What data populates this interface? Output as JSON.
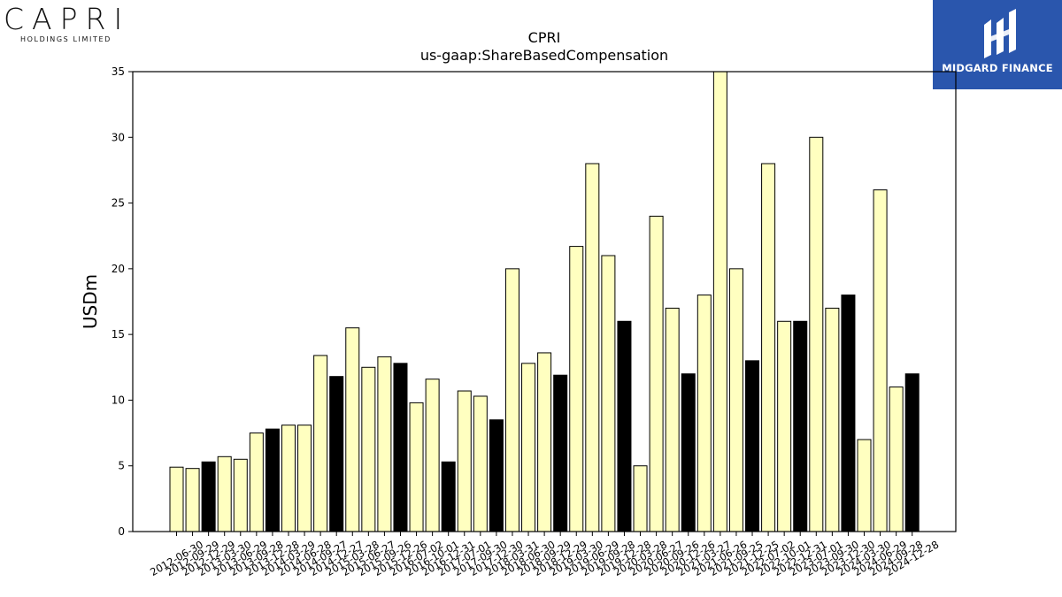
{
  "logos": {
    "capri_word": "CAPRI",
    "capri_sub": "HOLDINGS LIMITED",
    "midgard": "MIDGARD FINANCE"
  },
  "chart_data": {
    "type": "bar",
    "title": "CPRI",
    "subtitle": "us-gaap:ShareBasedCompensation",
    "xlabel": "",
    "ylabel": "USDm",
    "ylim": [
      0,
      35
    ],
    "yticks": [
      0,
      5,
      10,
      15,
      20,
      25,
      30,
      35
    ],
    "grid": false,
    "colors": {
      "q4": "#000000",
      "other": "#ffffc0",
      "edge": "#000000"
    },
    "categories": [
      "2012-06-30",
      "2012-09-29",
      "2012-12-29",
      "2013-03-30",
      "2013-06-29",
      "2013-09-28",
      "2013-12-28",
      "2014-03-29",
      "2014-06-28",
      "2014-09-27",
      "2014-12-27",
      "2015-03-28",
      "2015-06-27",
      "2015-09-26",
      "2015-12-26",
      "2016-07-02",
      "2016-10-01",
      "2016-12-31",
      "2017-07-01",
      "2017-09-30",
      "2017-12-30",
      "2018-03-31",
      "2018-06-30",
      "2018-09-29",
      "2018-12-29",
      "2019-03-30",
      "2019-06-29",
      "2019-09-28",
      "2019-12-28",
      "2020-03-28",
      "2020-06-27",
      "2020-09-26",
      "2020-12-26",
      "2021-03-27",
      "2021-06-26",
      "2021-09-25",
      "2021-12-25",
      "2022-07-02",
      "2022-10-01",
      "2022-12-31",
      "2023-07-01",
      "2023-09-30",
      "2023-12-30",
      "2024-03-30",
      "2024-06-29",
      "2024-09-28",
      "2024-12-28"
    ],
    "values": [
      4.9,
      4.8,
      5.3,
      5.7,
      5.5,
      7.5,
      7.8,
      8.1,
      8.1,
      13.4,
      11.8,
      15.5,
      12.5,
      13.3,
      12.8,
      9.8,
      11.6,
      5.3,
      10.7,
      10.3,
      8.5,
      20.0,
      12.8,
      13.6,
      11.9,
      21.7,
      28.0,
      21.0,
      16.0,
      5.0,
      24.0,
      17.0,
      12.0,
      18.0,
      35.0,
      20.0,
      13.0,
      28.0,
      16.0,
      16.0,
      30.0,
      17.0,
      18.0,
      7.0,
      26.0,
      11.0,
      12.0
    ],
    "highlight": [
      false,
      false,
      true,
      false,
      false,
      false,
      true,
      false,
      false,
      false,
      true,
      false,
      false,
      false,
      true,
      false,
      false,
      true,
      false,
      false,
      true,
      false,
      false,
      false,
      true,
      false,
      false,
      false,
      true,
      false,
      false,
      false,
      true,
      false,
      false,
      false,
      true,
      false,
      false,
      true,
      false,
      false,
      true,
      false,
      false,
      false,
      true
    ]
  }
}
